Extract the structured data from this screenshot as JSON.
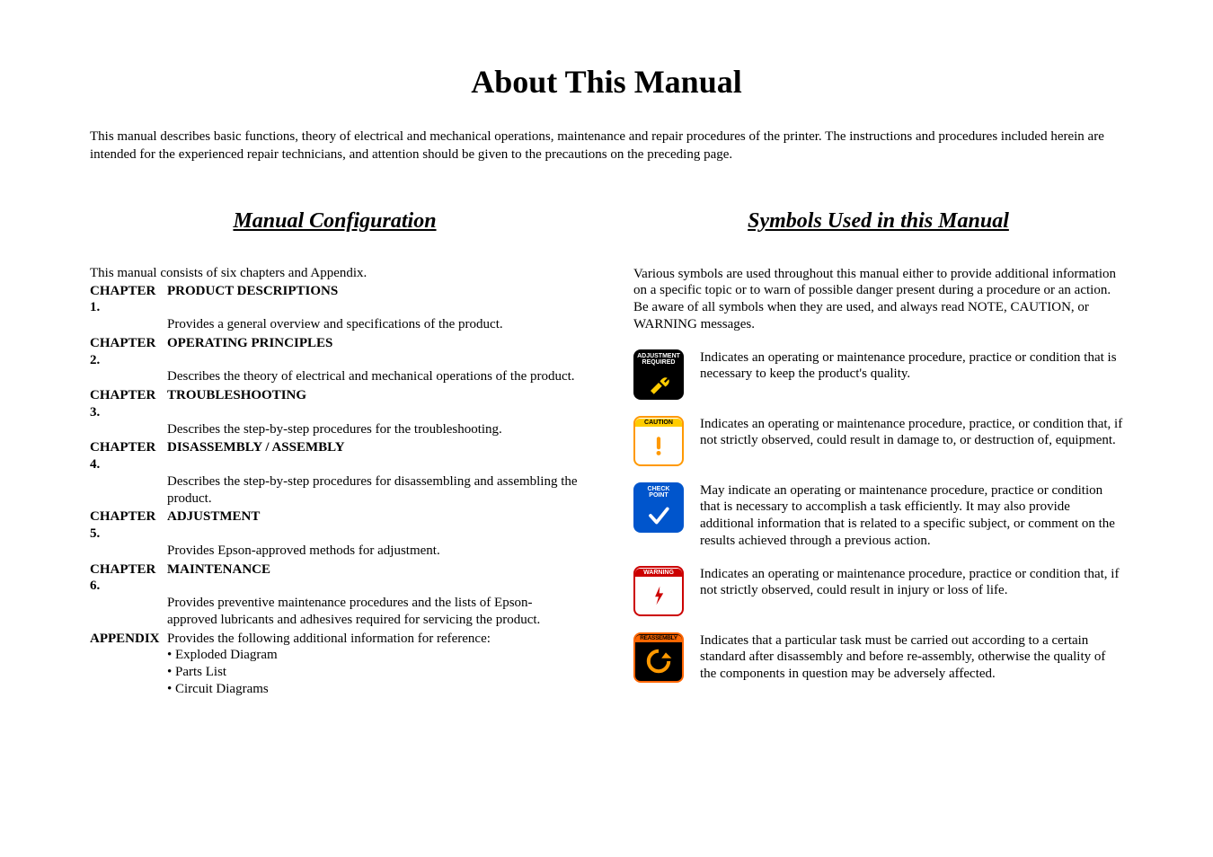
{
  "title": "About This Manual",
  "intro": "This manual describes basic functions, theory of electrical and mechanical operations, maintenance and repair procedures of the printer. The instructions and procedures included herein are intended for the experienced repair technicians, and attention should be given to the precautions on the preceding page.",
  "left": {
    "heading": "Manual Configuration",
    "intro": "This manual consists of six chapters and Appendix.",
    "chapters": [
      {
        "label": "CHAPTER 1.",
        "title": "PRODUCT DESCRIPTIONS",
        "desc": "Provides a general overview and specifications of the product."
      },
      {
        "label": "CHAPTER 2.",
        "title": "OPERATING PRINCIPLES",
        "desc": "Describes the theory of electrical and mechanical operations of the product."
      },
      {
        "label": "CHAPTER 3.",
        "title": "TROUBLESHOOTING",
        "desc": "Describes the step-by-step procedures for the troubleshooting."
      },
      {
        "label": "CHAPTER 4.",
        "title": "DISASSEMBLY / ASSEMBLY",
        "desc": "Describes the step-by-step procedures for disassembling and assembling the product."
      },
      {
        "label": "CHAPTER 5.",
        "title": "ADJUSTMENT",
        "desc": "Provides Epson-approved methods for adjustment."
      },
      {
        "label": "CHAPTER 6.",
        "title": "MAINTENANCE",
        "desc": "Provides preventive maintenance procedures and the lists of Epson-approved lubricants and adhesives required for servicing the product."
      }
    ],
    "appendix": {
      "label": "APPENDIX",
      "text": "Provides the following additional information for reference:",
      "bullets": [
        "• Exploded Diagram",
        "• Parts List",
        "• Circuit Diagrams"
      ]
    }
  },
  "right": {
    "heading": "Symbols Used in this Manual",
    "intro": "Various symbols are used throughout this manual either to provide additional information on a specific topic or to warn of possible danger present during a procedure or an action. Be aware of all symbols when they are used, and always read NOTE, CAUTION, or WARNING messages.",
    "symbols": [
      {
        "name": "adjustment-required",
        "label": "ADJUSTMENT\nREQUIRED",
        "iconClass": "ic-adjustment",
        "glyph_svg": "<svg viewBox='0 0 40 40' width='30' height='30'><path d='M8 32 L20 20 L25 25 L13 37 Z M22 18 C22 18 27 10 33 13 L28 18 L30 20 L35 15 C38 21 30 26 30 26 Z' fill='#ffcc00'/></svg>",
        "desc": "Indicates an operating or maintenance procedure, practice or condition that is necessary to keep the product's quality."
      },
      {
        "name": "caution",
        "label": "CAUTION",
        "iconClass": "ic-caution",
        "glyph_svg": "<svg viewBox='0 0 40 40' width='28' height='34'><rect x='17' y='6' width='6' height='20' rx='3' fill='#ff9900'/><circle cx='20' cy='32' r='3.5' fill='#ff9900'/></svg>",
        "desc": "Indicates an operating or maintenance procedure, practice, or condition that, if not strictly observed, could result in damage to, or destruction of, equipment."
      },
      {
        "name": "check-point",
        "label": "CHECK\nPOINT",
        "iconClass": "ic-check",
        "glyph_svg": "<svg viewBox='0 0 40 40' width='30' height='30'><path d='M8 20 L17 30 L33 10' stroke='#ffffff' stroke-width='5' fill='none' stroke-linecap='round' stroke-linejoin='round'/></svg>",
        "desc": "May indicate an operating or maintenance procedure, practice or condition that is necessary to accomplish a task efficiently. It may also provide additional information that is related to a specific subject, or comment on the results achieved through a previous action."
      },
      {
        "name": "warning",
        "label": "WARNING",
        "iconClass": "ic-warning",
        "glyph_svg": "<svg viewBox='0 0 40 40' width='26' height='34'><path d='M22 4 L14 22 L20 22 L16 36 L28 16 L21 16 Z' fill='#cc0000'/></svg>",
        "desc": "Indicates an operating or maintenance procedure, practice or condition that, if not strictly observed, could result in injury or loss of life."
      },
      {
        "name": "reassembly",
        "label": "REASSEMBLY",
        "iconClass": "ic-reassembly",
        "glyph_svg": "<svg viewBox='0 0 40 40' width='32' height='32'><path d='M20 6 A14 14 0 1 0 34 20' stroke='#ff9900' stroke-width='5' fill='none'/><path d='M30 8 L38 16 L24 16 Z' fill='#ff9900'/></svg>",
        "desc": "Indicates that a particular task must be carried out according to a certain standard after disassembly and before re-assembly, otherwise the quality of the components in question may be adversely affected."
      }
    ]
  },
  "style": {
    "title_fontsize": 36,
    "body_fontsize": 15,
    "heading_fontsize": 24,
    "font_family": "Times New Roman",
    "text_color": "#000000",
    "background_color": "#ffffff",
    "icon_colors": {
      "adjustment_bg": "#000000",
      "adjustment_glyph": "#ffcc00",
      "caution_border": "#ff9900",
      "caution_header_bg": "#ffcc00",
      "check_bg": "#0055cc",
      "check_glyph": "#ffffff",
      "warning_accent": "#cc0000",
      "reassembly_bg": "#000000",
      "reassembly_accent": "#ff6600"
    }
  }
}
